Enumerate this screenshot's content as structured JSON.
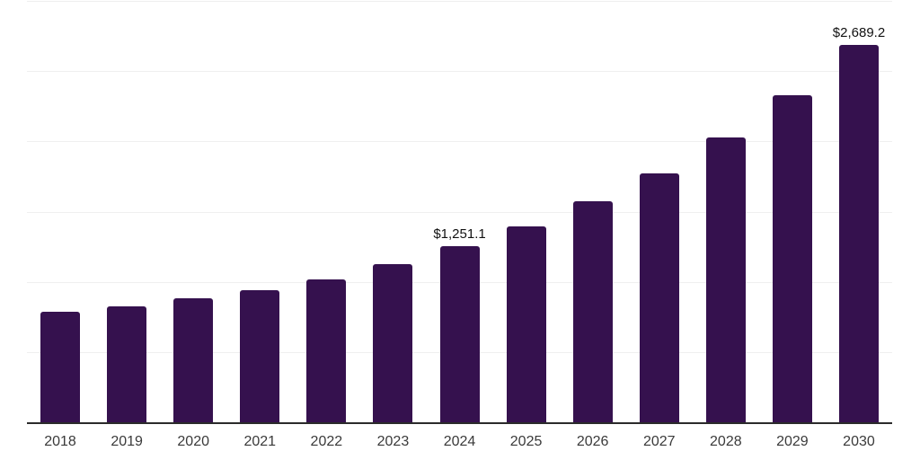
{
  "chart_data": {
    "type": "bar",
    "title": "",
    "xlabel": "",
    "ylabel": "",
    "categories": [
      "2018",
      "2019",
      "2020",
      "2021",
      "2022",
      "2023",
      "2024",
      "2025",
      "2026",
      "2027",
      "2028",
      "2029",
      "2030"
    ],
    "values": [
      787,
      826,
      883,
      941,
      1017,
      1126,
      1251.1,
      1394,
      1574,
      1772,
      2028,
      2329,
      2689.2
    ],
    "point_labels": [
      "",
      "",
      "",
      "",
      "",
      "",
      "$1,251.1",
      "",
      "",
      "",
      "",
      "",
      "$2,689.2"
    ],
    "ylim": [
      0,
      3000
    ],
    "gridlines": [
      500,
      1000,
      1500,
      2000,
      2500,
      3000
    ],
    "grid": "horizontal",
    "legend": "none",
    "colors": {
      "bar": "#35114E",
      "axis": "#2b2b2b",
      "grid": "#efefef",
      "tick_text": "#3a3a3a",
      "value_label_text": "#111111",
      "background": "#ffffff"
    }
  }
}
